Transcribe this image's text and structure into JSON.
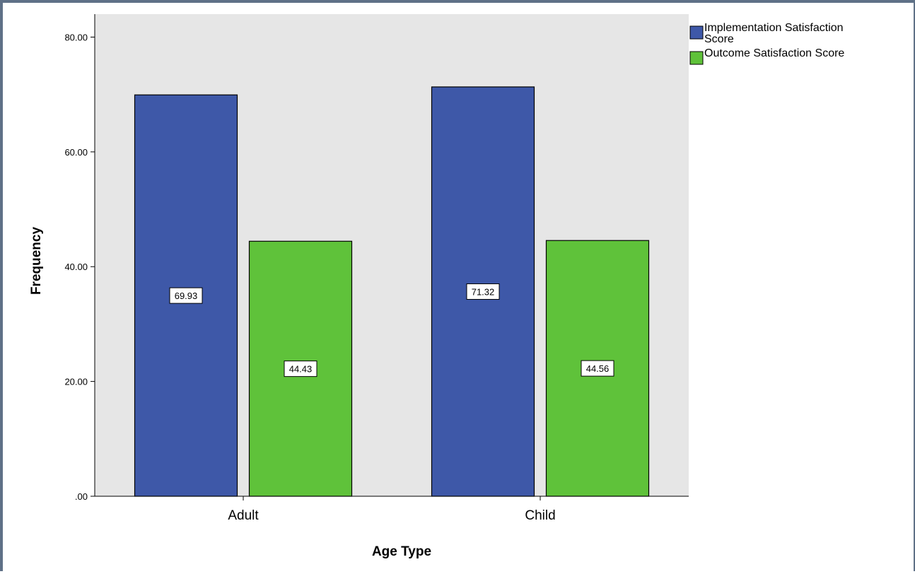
{
  "colors": {
    "plot_background": "#e6e6e6",
    "series_implementation": "#3e58a8",
    "series_outcome": "#5fc23a",
    "frame_border": "#5f7187"
  },
  "chart_data": {
    "type": "bar",
    "title": "",
    "xlabel": "Age Type",
    "ylabel": "Frequency",
    "categories": [
      "Adult",
      "Child"
    ],
    "ylim": [
      0,
      84
    ],
    "yticks": [
      0,
      20,
      40,
      60,
      80
    ],
    "ytick_labels": [
      ".00",
      "20.00",
      "40.00",
      "60.00",
      "80.00"
    ],
    "series": [
      {
        "name": "Implementation Satisfaction Score",
        "name_lines": [
          "Implementation Satisfaction",
          "Score"
        ],
        "color": "#3e58a8",
        "values": [
          69.93,
          71.32
        ],
        "value_labels": [
          "69.93",
          "71.32"
        ]
      },
      {
        "name": "Outcome Satisfaction Score",
        "name_lines": [
          "Outcome Satisfaction Score"
        ],
        "color": "#5fc23a",
        "values": [
          44.43,
          44.56
        ],
        "value_labels": [
          "44.43",
          "44.56"
        ]
      }
    ],
    "legend_position": "top-right",
    "grid": false
  }
}
